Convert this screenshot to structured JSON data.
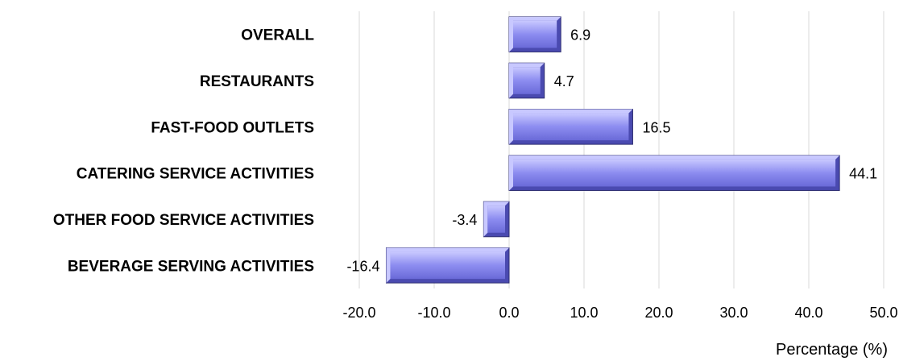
{
  "chart_data": {
    "type": "bar",
    "orientation": "horizontal",
    "categories": [
      "OVERALL",
      "RESTAURANTS",
      "FAST-FOOD OUTLETS",
      "CATERING SERVICE ACTIVITIES",
      "OTHER FOOD SERVICE ACTIVITIES",
      "BEVERAGE SERVING ACTIVITIES"
    ],
    "values": [
      6.9,
      4.7,
      16.5,
      44.1,
      -3.4,
      -16.4
    ],
    "value_labels": [
      "6.9",
      "4.7",
      "16.5",
      "44.1",
      "-3.4",
      "-16.4"
    ],
    "xlabel": "Percentage (%)",
    "ylabel": "",
    "xlim": [
      -20,
      50
    ],
    "x_ticks": [
      "-20.0",
      "-10.0",
      "0.0",
      "10.0",
      "20.0",
      "30.0",
      "40.0",
      "50.0"
    ],
    "grid": "vertical",
    "legend": "none",
    "colors": {
      "bar_fill": "#8c8cf0",
      "bar_light": "#c8c8ff",
      "bar_dark": "#4a4ab0",
      "bar_edge": "#2e2e70"
    }
  }
}
